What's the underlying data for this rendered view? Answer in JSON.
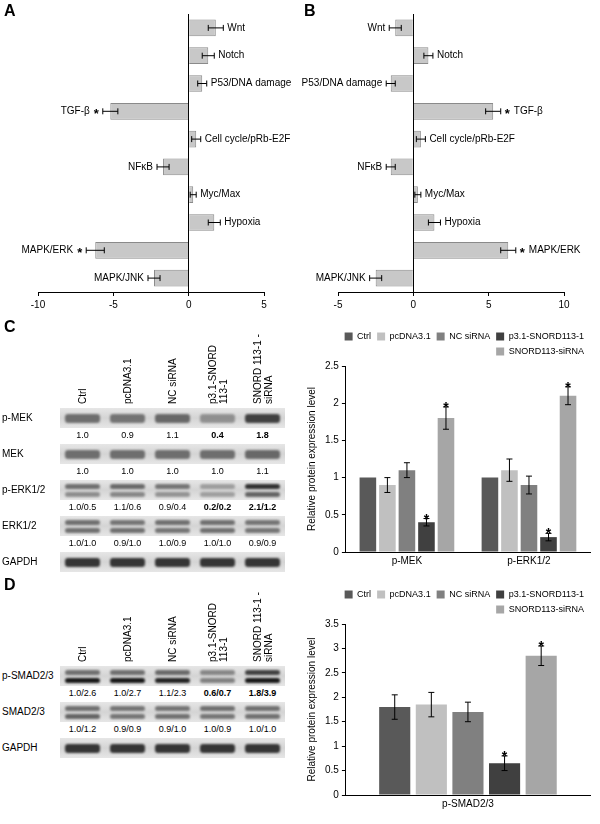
{
  "chart_data": [
    {
      "panel": "A",
      "type": "bar",
      "orientation": "horizontal",
      "categories": [
        "Wnt",
        "Notch",
        "P53/DNA damage",
        "TGF-β",
        "Cell cycle/pRb-E2F",
        "NFκB",
        "Myc/Max",
        "Hypoxia",
        "MAPK/ERK",
        "MAPK/JNK"
      ],
      "values": [
        1.8,
        1.3,
        0.9,
        -5.2,
        0.5,
        -1.7,
        0.3,
        1.7,
        -6.2,
        -2.3
      ],
      "errors": [
        0.5,
        0.4,
        0.3,
        0.5,
        0.3,
        0.4,
        0.2,
        0.4,
        0.6,
        0.4
      ],
      "color": "#c8c8c8",
      "xlim": [
        -10,
        5
      ],
      "xticks": [
        -10,
        -5,
        0,
        5
      ],
      "grid": false,
      "tick_labels": "x",
      "annotations": [
        {
          "category": "TGF-β",
          "text": "*"
        },
        {
          "category": "MAPK/ERK",
          "text": "*"
        }
      ]
    },
    {
      "panel": "B",
      "type": "bar",
      "orientation": "horizontal",
      "categories": [
        "Wnt",
        "Notch",
        "P53/DNA damage",
        "TGF-β",
        "Cell cycle/pRb-E2F",
        "NFκB",
        "Myc/Max",
        "Hypoxia",
        "MAPK/ERK",
        "MAPK/JNK"
      ],
      "values": [
        -1.2,
        1.0,
        -1.5,
        5.3,
        0.5,
        -1.5,
        0.3,
        1.4,
        6.3,
        -2.5
      ],
      "errors": [
        0.4,
        0.3,
        0.3,
        0.5,
        0.3,
        0.3,
        0.2,
        0.4,
        0.5,
        0.4
      ],
      "color": "#c8c8c8",
      "xlim": [
        -5,
        10
      ],
      "xticks": [
        -5,
        0,
        5,
        10
      ],
      "grid": false,
      "tick_labels": "x",
      "annotations": [
        {
          "category": "TGF-β",
          "text": "*"
        },
        {
          "category": "MAPK/ERK",
          "text": "*"
        }
      ]
    },
    {
      "panel": "C",
      "type": "bar",
      "categories": [
        "p-MEK",
        "p-ERK1/2"
      ],
      "series": [
        {
          "name": "Ctrl",
          "color": "#595959",
          "values": [
            1.0,
            1.0
          ],
          "errors": [
            0,
            0
          ]
        },
        {
          "name": "pcDNA3.1",
          "color": "#c0c0c0",
          "values": [
            0.9,
            1.1
          ],
          "errors": [
            0.1,
            0.15
          ]
        },
        {
          "name": "NC siRNA",
          "color": "#808080",
          "values": [
            1.1,
            0.9
          ],
          "errors": [
            0.1,
            0.12
          ]
        },
        {
          "name": "p3.1-SNORD113-1",
          "color": "#404040",
          "values": [
            0.4,
            0.2
          ],
          "errors": [
            0.05,
            0.05
          ]
        },
        {
          "name": "SNORD113-siRNA",
          "color": "#a6a6a6",
          "values": [
            1.8,
            2.1
          ],
          "errors": [
            0.15,
            0.12
          ]
        }
      ],
      "ylabel": "Relative protein expression level",
      "ylim": [
        0,
        2.5
      ],
      "yticks": [
        0,
        0.5,
        1,
        1.5,
        2,
        2.5
      ],
      "grid": false,
      "legend": "top-right",
      "annotations": [
        {
          "category": "p-MEK",
          "series": "p3.1-SNORD113-1",
          "text": "*"
        },
        {
          "category": "p-MEK",
          "series": "SNORD113-siRNA",
          "text": "*"
        },
        {
          "category": "p-ERK1/2",
          "series": "p3.1-SNORD113-1",
          "text": "*"
        },
        {
          "category": "p-ERK1/2",
          "series": "SNORD113-siRNA",
          "text": "*"
        }
      ]
    },
    {
      "panel": "D",
      "type": "bar",
      "categories": [
        "p-SMAD2/3"
      ],
      "series": [
        {
          "name": "Ctrl",
          "color": "#595959",
          "values": [
            1.8
          ],
          "errors": [
            0.25
          ]
        },
        {
          "name": "pcDNA3.1",
          "color": "#c0c0c0",
          "values": [
            1.85
          ],
          "errors": [
            0.25
          ]
        },
        {
          "name": "NC siRNA",
          "color": "#808080",
          "values": [
            1.7
          ],
          "errors": [
            0.2
          ]
        },
        {
          "name": "p3.1-SNORD113-1",
          "color": "#404040",
          "values": [
            0.65
          ],
          "errors": [
            0.15
          ]
        },
        {
          "name": "SNORD113-siRNA",
          "color": "#a6a6a6",
          "values": [
            2.85
          ],
          "errors": [
            0.2
          ]
        }
      ],
      "ylabel": "Relative protein expression level",
      "ylim": [
        0,
        3.5
      ],
      "yticks": [
        0,
        0.5,
        1,
        1.5,
        2,
        2.5,
        3,
        3.5
      ],
      "grid": false,
      "legend": "top-right",
      "annotations": [
        {
          "category": "p-SMAD2/3",
          "series": "p3.1-SNORD113-1",
          "text": "*"
        },
        {
          "category": "p-SMAD2/3",
          "series": "SNORD113-siRNA",
          "text": "*"
        }
      ]
    }
  ],
  "blots": [
    {
      "lanes": [
        "Ctrl",
        "pcDNA3.1",
        "NC siRNA",
        "p3.1-SNORD 113-1",
        "SNORD 113-1 -siRNA"
      ],
      "rows": [
        {
          "name": "p-MEK",
          "values": [
            "1.0",
            "0.9",
            "1.1",
            "0.4",
            "1.8"
          ],
          "bold": [
            false,
            false,
            false,
            true,
            true
          ]
        },
        {
          "name": "MEK",
          "values": [
            "1.0",
            "1.0",
            "1.0",
            "1.0",
            "1.1"
          ]
        },
        {
          "name": "p-ERK1/2",
          "values": [
            "1.0/0.5",
            "1.1/0.6",
            "0.9/0.4",
            "0.2/0.2",
            "2.1/1.2"
          ],
          "bold": [
            false,
            false,
            false,
            true,
            true
          ]
        },
        {
          "name": "ERK1/2",
          "values": [
            "1.0/1.0",
            "0.9/1.0",
            "1.0/0.9",
            "1.0/1.0",
            "0.9/0.9"
          ]
        },
        {
          "name": "GAPDH"
        }
      ]
    },
    {
      "lanes": [
        "Ctrl",
        "pcDNA3.1",
        "NC siRNA",
        "p3.1-SNORD 113-1",
        "SNORD 113-1 -siRNA"
      ],
      "rows": [
        {
          "name": "p-SMAD2/3",
          "values": [
            "1.0/2.6",
            "1.0/2.7",
            "1.1/2.3",
            "0.6/0.7",
            "1.8/3.9"
          ],
          "bold": [
            false,
            false,
            false,
            true,
            true
          ]
        },
        {
          "name": "SMAD2/3",
          "values": [
            "1.0/1.2",
            "0.9/0.9",
            "0.9/1.0",
            "1.0/0.9",
            "1.0/1.0"
          ]
        },
        {
          "name": "GAPDH"
        }
      ]
    }
  ]
}
